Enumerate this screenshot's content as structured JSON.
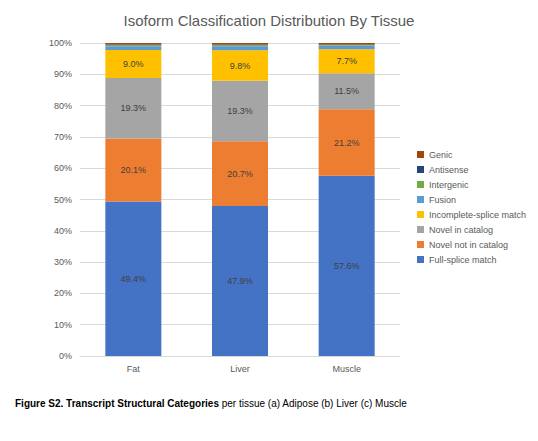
{
  "chart_data": {
    "type": "bar",
    "stacked": true,
    "data_labels": true,
    "grid": true,
    "legend": "right",
    "title": "Isoform Classification Distribution By Tissue",
    "categories": [
      "Fat",
      "Liver",
      "Muscle"
    ],
    "ylim": [
      0,
      100
    ],
    "yticks": [
      {
        "value": 0,
        "label": "0%"
      },
      {
        "value": 10,
        "label": "10%"
      },
      {
        "value": 20,
        "label": "20%"
      },
      {
        "value": 30,
        "label": "30%"
      },
      {
        "value": 40,
        "label": "40%"
      },
      {
        "value": 50,
        "label": "50%"
      },
      {
        "value": 60,
        "label": "60%"
      },
      {
        "value": 70,
        "label": "70%"
      },
      {
        "value": 80,
        "label": "80%"
      },
      {
        "value": 90,
        "label": "90%"
      },
      {
        "value": 100,
        "label": "100%"
      }
    ],
    "series": [
      {
        "name": "Full-splice match",
        "color": "#4472c4",
        "values": [
          49.4,
          47.9,
          57.6
        ],
        "value_labels": [
          "49.4%",
          "47.9%",
          "57.6%"
        ]
      },
      {
        "name": "Novel not in catalog",
        "color": "#ed7d31",
        "values": [
          20.1,
          20.7,
          21.2
        ],
        "value_labels": [
          "20.1%",
          "20.7%",
          "21.2%"
        ]
      },
      {
        "name": "Novel in catalog",
        "color": "#a5a5a5",
        "values": [
          19.3,
          19.3,
          11.5
        ],
        "value_labels": [
          "19.3%",
          "19.3%",
          "11.5%"
        ]
      },
      {
        "name": "Incomplete-splice match",
        "color": "#ffc000",
        "values": [
          9.0,
          9.8,
          7.7
        ],
        "value_labels": [
          "9.0%",
          "9.8%",
          "7.7%"
        ]
      },
      {
        "name": "Fusion",
        "color": "#5b9bd5",
        "values": [
          1.2,
          1.3,
          1.1
        ]
      },
      {
        "name": "Intergenic",
        "color": "#70ad47",
        "values": [
          0.3,
          0.3,
          0.3
        ]
      },
      {
        "name": "Antisense",
        "color": "#264478",
        "values": [
          0.2,
          0.2,
          0.1
        ]
      },
      {
        "name": "Genic",
        "color": "#9e480e",
        "values": [
          0.5,
          0.5,
          0.5
        ]
      }
    ],
    "caption": {
      "bold": "Figure S2. Transcript Structural Categories",
      "normal": "per tissue (a) Adipose (b) Liver (c) Muscle"
    }
  }
}
